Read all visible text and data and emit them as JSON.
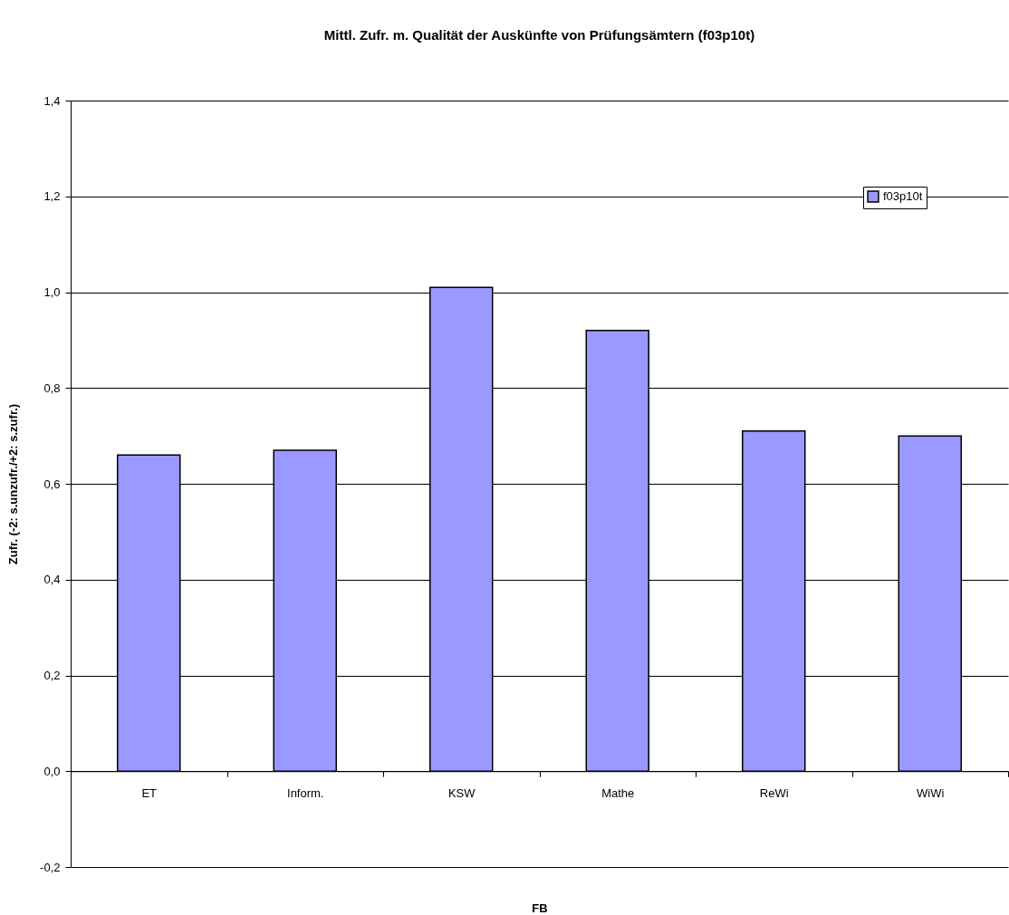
{
  "chart_data": {
    "type": "bar",
    "title": "Mittl. Zufr. m. Qualität der Auskünfte von Prüfungsämtern (f03p10t)",
    "xlabel": "FB",
    "ylabel": "Zufr. (-2: s.unzufr./+2: s.zufr.)",
    "categories": [
      "ET",
      "Inform.",
      "KSW",
      "Mathe",
      "ReWi",
      "WiWi"
    ],
    "series": [
      {
        "name": "f03p10t",
        "color": "#9999ff",
        "values": [
          0.66,
          0.67,
          1.01,
          0.92,
          0.71,
          0.7
        ]
      }
    ],
    "ylim": [
      -0.2,
      1.4
    ],
    "yticks": [
      {
        "value": -0.2,
        "label": "-0,2"
      },
      {
        "value": 0,
        "label": "0,0"
      },
      {
        "value": 0.2,
        "label": "0,2"
      },
      {
        "value": 0.4,
        "label": "0,4"
      },
      {
        "value": 0.6,
        "label": "0,6"
      },
      {
        "value": 0.8,
        "label": "0,8"
      },
      {
        "value": 1,
        "label": "1,0"
      },
      {
        "value": 1.2,
        "label": "1,2"
      },
      {
        "value": 1.4,
        "label": "1,4"
      }
    ],
    "grid": "y",
    "legend": "top right"
  }
}
